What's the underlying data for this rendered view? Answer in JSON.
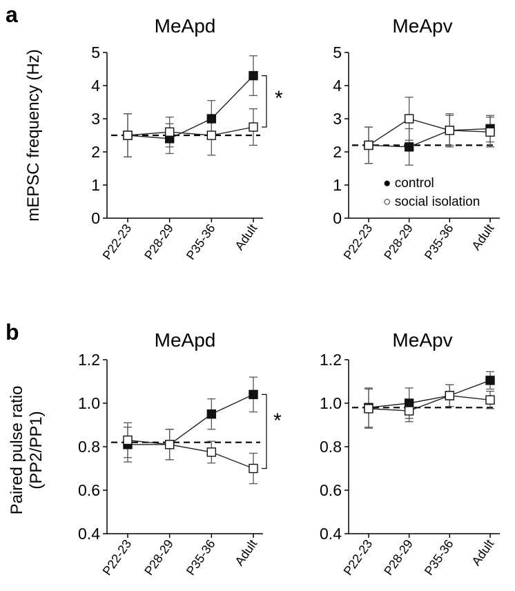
{
  "chart_data": [
    {
      "panel": "a",
      "type": "line",
      "title": "MeApd",
      "ylabel": "mEPSC frequency (Hz)",
      "categories": [
        "P22-23",
        "P28-29",
        "P35-36",
        "Adult"
      ],
      "ylim": [
        0,
        5
      ],
      "yticks": [
        "0",
        "1",
        "2",
        "3",
        "4",
        "5"
      ],
      "baseline": 2.5,
      "series": [
        {
          "name": "control",
          "marker": "filled-square",
          "values": [
            2.5,
            2.4,
            3.0,
            4.3
          ],
          "err": [
            0.65,
            0.45,
            0.55,
            0.6
          ]
        },
        {
          "name": "social isolation",
          "marker": "open-square",
          "values": [
            2.5,
            2.6,
            2.5,
            2.75
          ],
          "err": [
            0.65,
            0.45,
            0.6,
            0.55
          ]
        }
      ],
      "significance": "*"
    },
    {
      "panel": "",
      "type": "line",
      "title": "MeApv",
      "ylabel": "",
      "categories": [
        "P22-23",
        "P28-29",
        "P35-36",
        "Adult"
      ],
      "ylim": [
        0,
        5
      ],
      "yticks": [
        "0",
        "1",
        "2",
        "3",
        "4",
        "5"
      ],
      "baseline": 2.2,
      "series": [
        {
          "name": "control",
          "marker": "filled-square",
          "values": [
            2.2,
            2.15,
            2.65,
            2.7
          ],
          "err": [
            0.55,
            0.55,
            0.45,
            0.4
          ]
        },
        {
          "name": "social isolation",
          "marker": "open-square",
          "values": [
            2.2,
            3.0,
            2.65,
            2.6
          ],
          "err": [
            0.55,
            0.65,
            0.5,
            0.45
          ]
        }
      ],
      "legend": {
        "entries": [
          "control",
          "social isolation"
        ],
        "symbols": [
          "●",
          "○"
        ],
        "position": "bottom-right"
      }
    },
    {
      "panel": "b",
      "type": "line",
      "title": "MeApd",
      "ylabel": "Paired pulse ratio",
      "ylabel2": "(PP2/PP1)",
      "categories": [
        "P22-23",
        "P28-29",
        "P35-36",
        "Adult"
      ],
      "ylim": [
        0.4,
        1.2
      ],
      "yticks": [
        "0.4",
        "0.6",
        "0.8",
        "1.0",
        "1.2"
      ],
      "baseline": 0.82,
      "series": [
        {
          "name": "control",
          "marker": "filled-square",
          "values": [
            0.81,
            0.81,
            0.95,
            1.04
          ],
          "err": [
            0.08,
            0.07,
            0.07,
            0.08
          ]
        },
        {
          "name": "social isolation",
          "marker": "open-square",
          "values": [
            0.83,
            0.81,
            0.775,
            0.7
          ],
          "err": [
            0.08,
            0.07,
            0.05,
            0.07
          ]
        }
      ],
      "significance": "*"
    },
    {
      "panel": "",
      "type": "line",
      "title": "MeApv",
      "ylabel": "",
      "categories": [
        "P22-23",
        "P28-29",
        "P35-36",
        "Adult"
      ],
      "ylim": [
        0.4,
        1.2
      ],
      "yticks": [
        "0.4",
        "0.6",
        "0.8",
        "1.0",
        "1.2"
      ],
      "baseline": 0.98,
      "series": [
        {
          "name": "control",
          "marker": "filled-square",
          "values": [
            0.98,
            1.0,
            1.035,
            1.105
          ],
          "err": [
            0.09,
            0.07,
            0.05,
            0.04
          ]
        },
        {
          "name": "social isolation",
          "marker": "open-square",
          "values": [
            0.975,
            0.965,
            1.035,
            1.015
          ],
          "err": [
            0.09,
            0.05,
            0.05,
            0.04
          ]
        }
      ]
    }
  ]
}
